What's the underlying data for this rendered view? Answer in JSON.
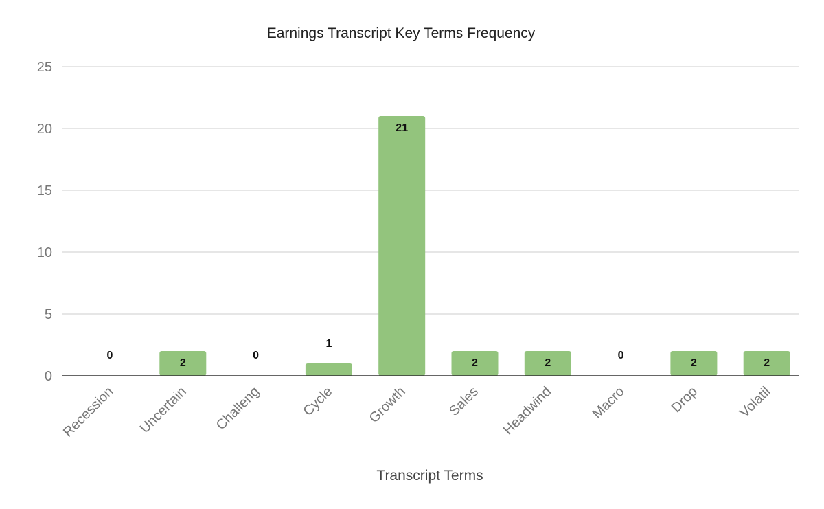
{
  "chart_data": {
    "type": "bar",
    "title": "Earnings Transcript Key Terms Frequency",
    "xlabel": "Transcript Terms",
    "ylabel": "",
    "categories": [
      "Recession",
      "Uncertain",
      "Challeng",
      "Cycle",
      "Growth",
      "Sales",
      "Headwind",
      "Macro",
      "Drop",
      "Volatil"
    ],
    "values": [
      0,
      2,
      0,
      1,
      21,
      2,
      2,
      0,
      2,
      2
    ],
    "ylim": [
      0,
      25
    ],
    "yticks": [
      0,
      5,
      10,
      15,
      20,
      25
    ],
    "grid": true,
    "legend": "none",
    "bar_color": "#93c47d",
    "data_labels": true
  }
}
